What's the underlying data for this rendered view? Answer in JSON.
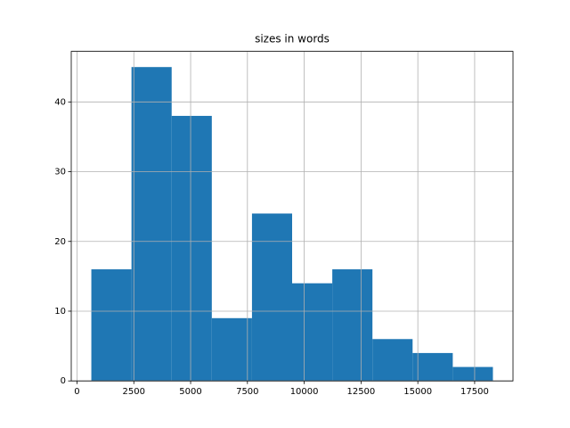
{
  "chart_data": {
    "type": "histogram",
    "title": "sizes in words",
    "bins": [
      630,
      2397,
      4165,
      5932,
      7700,
      9467,
      11235,
      13002,
      14769,
      16537,
      18304
    ],
    "values": [
      16,
      45,
      38,
      9,
      24,
      14,
      16,
      6,
      4,
      2
    ],
    "color": "#1f77b4",
    "xlim": [
      -254,
      19188
    ],
    "xticks": [
      0,
      2500,
      5000,
      7500,
      10000,
      12500,
      15000,
      17500
    ],
    "ylim": [
      0,
      47.25
    ],
    "yticks": [
      0,
      10,
      20,
      30,
      40
    ],
    "grid": true
  }
}
